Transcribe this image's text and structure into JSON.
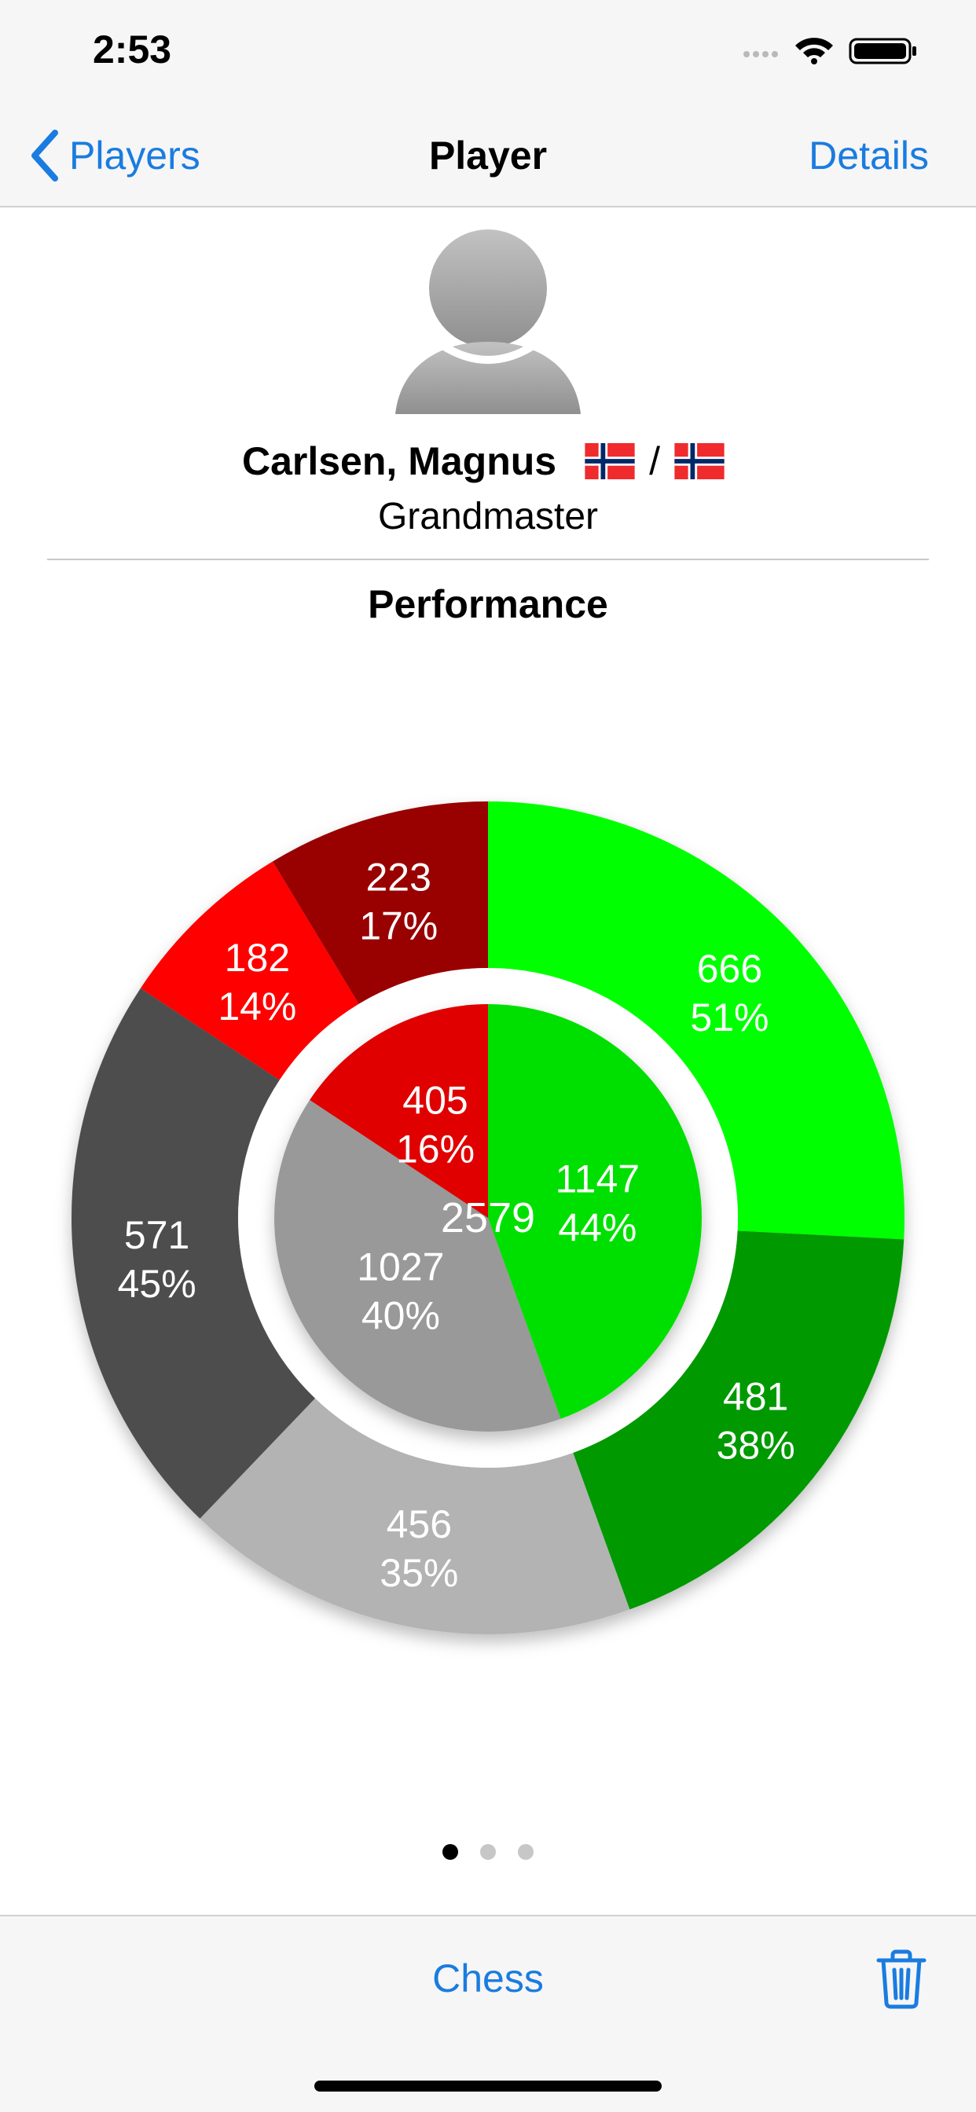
{
  "status_bar": {
    "time": "2:53"
  },
  "nav": {
    "back_label": "Players",
    "title": "Player",
    "right_label": "Details"
  },
  "player": {
    "name": "Carlsen, Magnus",
    "flag_separator": "/",
    "title": "Grandmaster"
  },
  "section_title": "Performance",
  "colors": {
    "accent": "#1a7ce0",
    "win_white": "#00ff00",
    "win_black": "#009900",
    "draw_white": "#b3b3b3",
    "draw_black": "#4d4d4d",
    "loss_white": "#ff0000",
    "loss_black": "#990000",
    "inner_win": "#00e000",
    "inner_draw": "#999999",
    "inner_loss": "#e00000"
  },
  "chart_data": {
    "type": "pie",
    "total": 2579,
    "inner": [
      {
        "value": 1147,
        "percent": "44%",
        "color": "#00e000"
      },
      {
        "value": 1027,
        "percent": "40%",
        "color": "#999999"
      },
      {
        "value": 405,
        "percent": "16%",
        "color": "#e00000"
      }
    ],
    "outer": [
      {
        "value": 666,
        "percent": "51%",
        "color": "#00ff00"
      },
      {
        "value": 481,
        "percent": "38%",
        "color": "#009900"
      },
      {
        "value": 456,
        "percent": "35%",
        "color": "#b3b3b3"
      },
      {
        "value": 571,
        "percent": "45%",
        "color": "#4d4d4d"
      },
      {
        "value": 182,
        "percent": "14%",
        "color": "#ff0000"
      },
      {
        "value": 223,
        "percent": "17%",
        "color": "#990000"
      }
    ]
  },
  "pager": {
    "count": 3,
    "active": 0
  },
  "toolbar": {
    "center_label": "Chess"
  }
}
